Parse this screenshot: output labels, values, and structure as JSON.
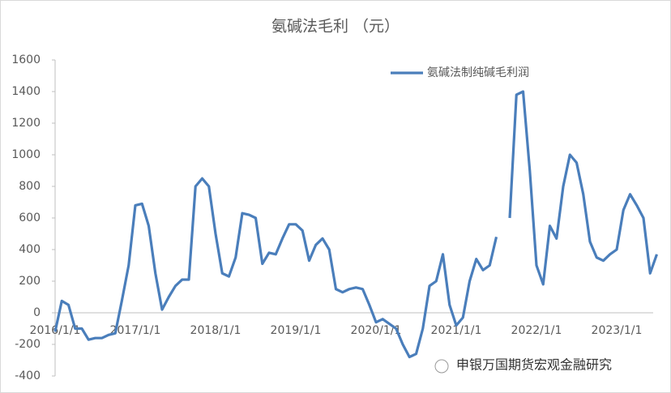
{
  "chart_data": {
    "type": "line",
    "title": "氨碱法毛利 （元）",
    "watermark": "申银万国期货宏观金融研究",
    "categories": [
      "2016/1/1",
      null,
      null,
      null,
      null,
      null,
      null,
      null,
      null,
      null,
      null,
      null,
      "2017/1/1",
      null,
      null,
      null,
      null,
      null,
      null,
      null,
      null,
      null,
      null,
      null,
      "2018/1/1",
      null,
      null,
      null,
      null,
      null,
      null,
      null,
      null,
      null,
      null,
      null,
      "2019/1/1",
      null,
      null,
      null,
      null,
      null,
      null,
      null,
      null,
      null,
      null,
      null,
      "2020/1/1",
      null,
      null,
      null,
      null,
      null,
      null,
      null,
      null,
      null,
      null,
      null,
      "2021/1/1",
      null,
      null,
      null,
      null,
      null,
      null,
      null,
      null,
      null,
      null,
      null,
      "2022/1/1",
      null,
      null,
      null,
      null,
      null,
      null,
      null,
      null,
      null,
      null,
      null,
      "2023/1/1",
      null,
      null,
      null,
      null,
      null,
      null
    ],
    "series": [
      {
        "name": "氨碱法制纯碱毛利润",
        "color": "#4a7ebb",
        "values": [
          -120,
          75,
          50,
          -100,
          -100,
          -170,
          -160,
          -160,
          -140,
          -130,
          80,
          300,
          680,
          690,
          550,
          250,
          20,
          100,
          170,
          210,
          210,
          800,
          850,
          800,
          500,
          250,
          230,
          350,
          630,
          620,
          600,
          310,
          380,
          370,
          470,
          560,
          560,
          520,
          330,
          430,
          470,
          400,
          150,
          130,
          150,
          160,
          150,
          50,
          -60,
          -40,
          -70,
          -100,
          -200,
          -280,
          -260,
          -100,
          170,
          200,
          370,
          50,
          -80,
          -30,
          200,
          340,
          270,
          300,
          480,
          null,
          600,
          1380,
          1400,
          900,
          300,
          180,
          550,
          470,
          800,
          1000,
          950,
          750,
          450,
          350,
          330,
          370,
          400,
          650,
          750,
          680,
          600,
          250,
          370
        ]
      }
    ],
    "ylim": [
      -400,
      1600
    ],
    "yticks": [
      -400,
      -200,
      0,
      200,
      400,
      600,
      800,
      1000,
      1200,
      1400,
      1600
    ],
    "grid": false,
    "legend": "top-right"
  }
}
